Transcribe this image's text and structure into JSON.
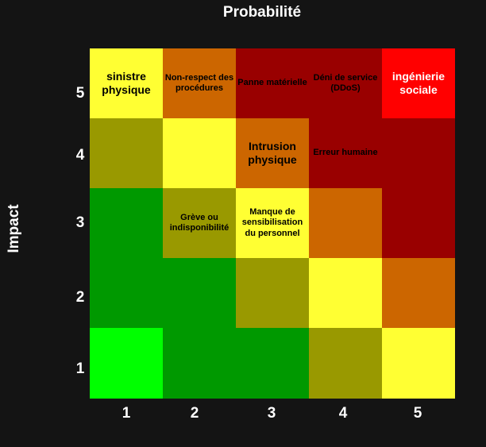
{
  "title": "Probabilité",
  "y_axis_label": "Impact",
  "x_ticks": [
    "1",
    "2",
    "3",
    "4",
    "5"
  ],
  "y_ticks": [
    "5",
    "4",
    "3",
    "2",
    "1"
  ],
  "colors": {
    "background": "#141414",
    "light_green": "#00ff00",
    "green": "#009900",
    "olive": "#999900",
    "yellow": "#ffff33",
    "orange": "#cc6600",
    "dark_red": "#990000",
    "red": "#ff0000"
  },
  "rows": [
    [
      {
        "color": "#ffff33",
        "label": "sinistre physique",
        "size": "big",
        "text_color": "#000000"
      },
      {
        "color": "#cc6600",
        "label": "Non-respect des procédures",
        "size": "small",
        "text_color": "#000000"
      },
      {
        "color": "#990000",
        "label": "Panne matérielle",
        "size": "small",
        "text_color": "#000000"
      },
      {
        "color": "#990000",
        "label": "Déni de service (DDoS)",
        "size": "small",
        "text_color": "#000000"
      },
      {
        "color": "#ff0000",
        "label": "ingénierie sociale",
        "size": "big",
        "text_color": "#ffffff"
      }
    ],
    [
      {
        "color": "#999900",
        "label": "",
        "size": "big",
        "text_color": "#000000"
      },
      {
        "color": "#ffff33",
        "label": "",
        "size": "big",
        "text_color": "#000000"
      },
      {
        "color": "#cc6600",
        "label": "Intrusion physique",
        "size": "big",
        "text_color": "#000000"
      },
      {
        "color": "#990000",
        "label": "Erreur humaine",
        "size": "small",
        "text_color": "#000000"
      },
      {
        "color": "#990000",
        "label": "",
        "size": "big",
        "text_color": "#000000"
      }
    ],
    [
      {
        "color": "#009900",
        "label": "",
        "size": "big",
        "text_color": "#000000"
      },
      {
        "color": "#999900",
        "label": "Grève ou indisponibilité",
        "size": "small",
        "text_color": "#000000"
      },
      {
        "color": "#ffff33",
        "label": "Manque de sensibilisation du personnel",
        "size": "small",
        "text_color": "#000000"
      },
      {
        "color": "#cc6600",
        "label": "",
        "size": "big",
        "text_color": "#000000"
      },
      {
        "color": "#990000",
        "label": "",
        "size": "big",
        "text_color": "#000000"
      }
    ],
    [
      {
        "color": "#009900",
        "label": "",
        "size": "big",
        "text_color": "#000000"
      },
      {
        "color": "#009900",
        "label": "",
        "size": "big",
        "text_color": "#000000"
      },
      {
        "color": "#999900",
        "label": "",
        "size": "big",
        "text_color": "#000000"
      },
      {
        "color": "#ffff33",
        "label": "",
        "size": "big",
        "text_color": "#000000"
      },
      {
        "color": "#cc6600",
        "label": "",
        "size": "big",
        "text_color": "#000000"
      }
    ],
    [
      {
        "color": "#00ff00",
        "label": "",
        "size": "big",
        "text_color": "#000000"
      },
      {
        "color": "#009900",
        "label": "",
        "size": "big",
        "text_color": "#000000"
      },
      {
        "color": "#009900",
        "label": "",
        "size": "big",
        "text_color": "#000000"
      },
      {
        "color": "#999900",
        "label": "",
        "size": "big",
        "text_color": "#000000"
      },
      {
        "color": "#ffff33",
        "label": "",
        "size": "big",
        "text_color": "#000000"
      }
    ]
  ]
}
